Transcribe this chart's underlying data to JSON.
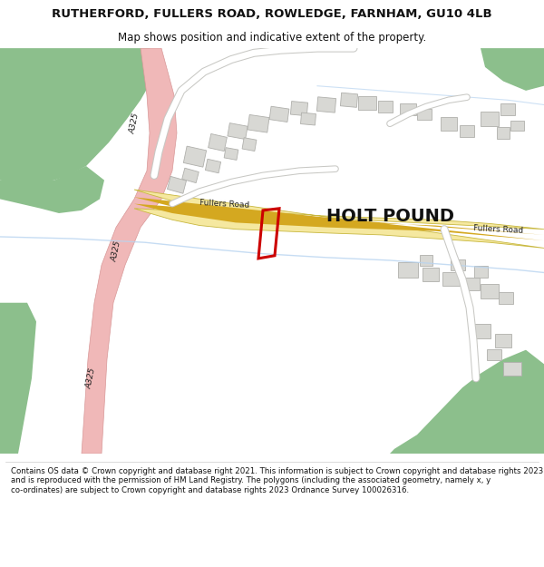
{
  "title_line1": "RUTHERFORD, FULLERS ROAD, ROWLEDGE, FARNHAM, GU10 4LB",
  "title_line2": "Map shows position and indicative extent of the property.",
  "footer_text": "Contains OS data © Crown copyright and database right 2021. This information is subject to Crown copyright and database rights 2023 and is reproduced with the permission of HM Land Registry. The polygons (including the associated geometry, namely x, y co-ordinates) are subject to Crown copyright and database rights 2023 Ordnance Survey 100026316.",
  "bg_color": "#ffffff",
  "map_bg": "#f2f0eb",
  "green_color": "#8cbf8c",
  "road_pink": "#f0b8b8",
  "road_yellow_light": "#f5e8a0",
  "road_yellow_mid": "#e8d060",
  "buildings_fill": "#d8d8d4",
  "buildings_edge": "#b0b0ac",
  "plot_edge": "#cc0000",
  "water_color": "#b8d4f0",
  "text_dark": "#333333",
  "title_fontsize": 9.5,
  "subtitle_fontsize": 8.5,
  "footer_fontsize": 6.2
}
